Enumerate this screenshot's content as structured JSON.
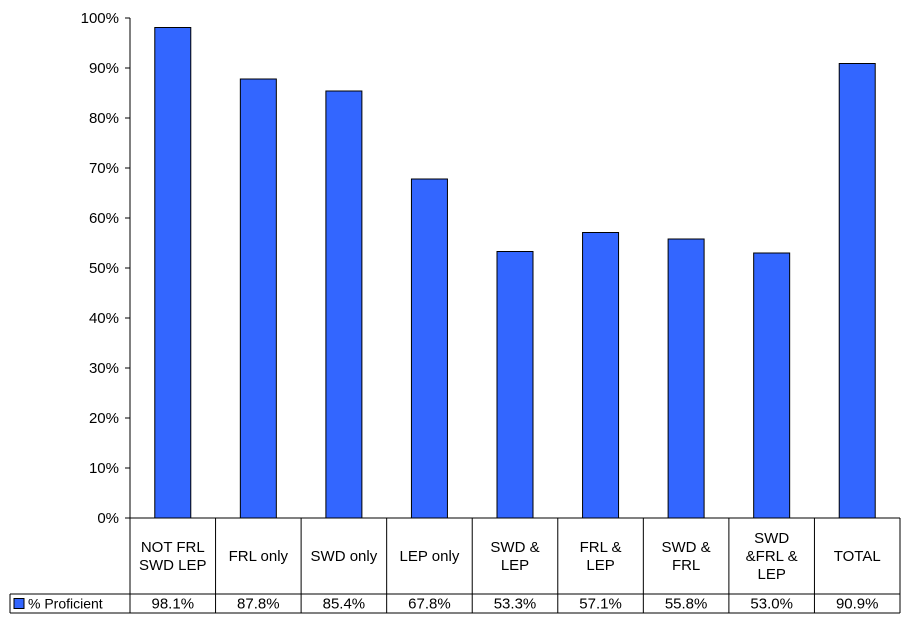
{
  "chart_data": {
    "type": "bar",
    "categories": [
      [
        "NOT FRL",
        "SWD LEP"
      ],
      [
        "FRL only"
      ],
      [
        "SWD only"
      ],
      [
        "LEP only"
      ],
      [
        "SWD &",
        "LEP"
      ],
      [
        "FRL &",
        "LEP"
      ],
      [
        "SWD &",
        "FRL"
      ],
      [
        "SWD",
        "&FRL &",
        "LEP"
      ],
      [
        "TOTAL"
      ]
    ],
    "series": [
      {
        "name": "% Proficient",
        "color": "#3366ff",
        "values": [
          98.1,
          87.8,
          85.4,
          67.8,
          53.3,
          57.1,
          55.8,
          53.0,
          90.9
        ],
        "labels": [
          "98.1%",
          "87.8%",
          "85.4%",
          "67.8%",
          "53.3%",
          "57.1%",
          "55.8%",
          "53.0%",
          "90.9%"
        ]
      }
    ],
    "ylim": [
      0,
      100
    ],
    "yticks": [
      "0%",
      "10%",
      "20%",
      "30%",
      "40%",
      "50%",
      "60%",
      "70%",
      "80%",
      "90%",
      "100%"
    ],
    "grid": false,
    "legend": "data-table-left",
    "data_table": true
  }
}
